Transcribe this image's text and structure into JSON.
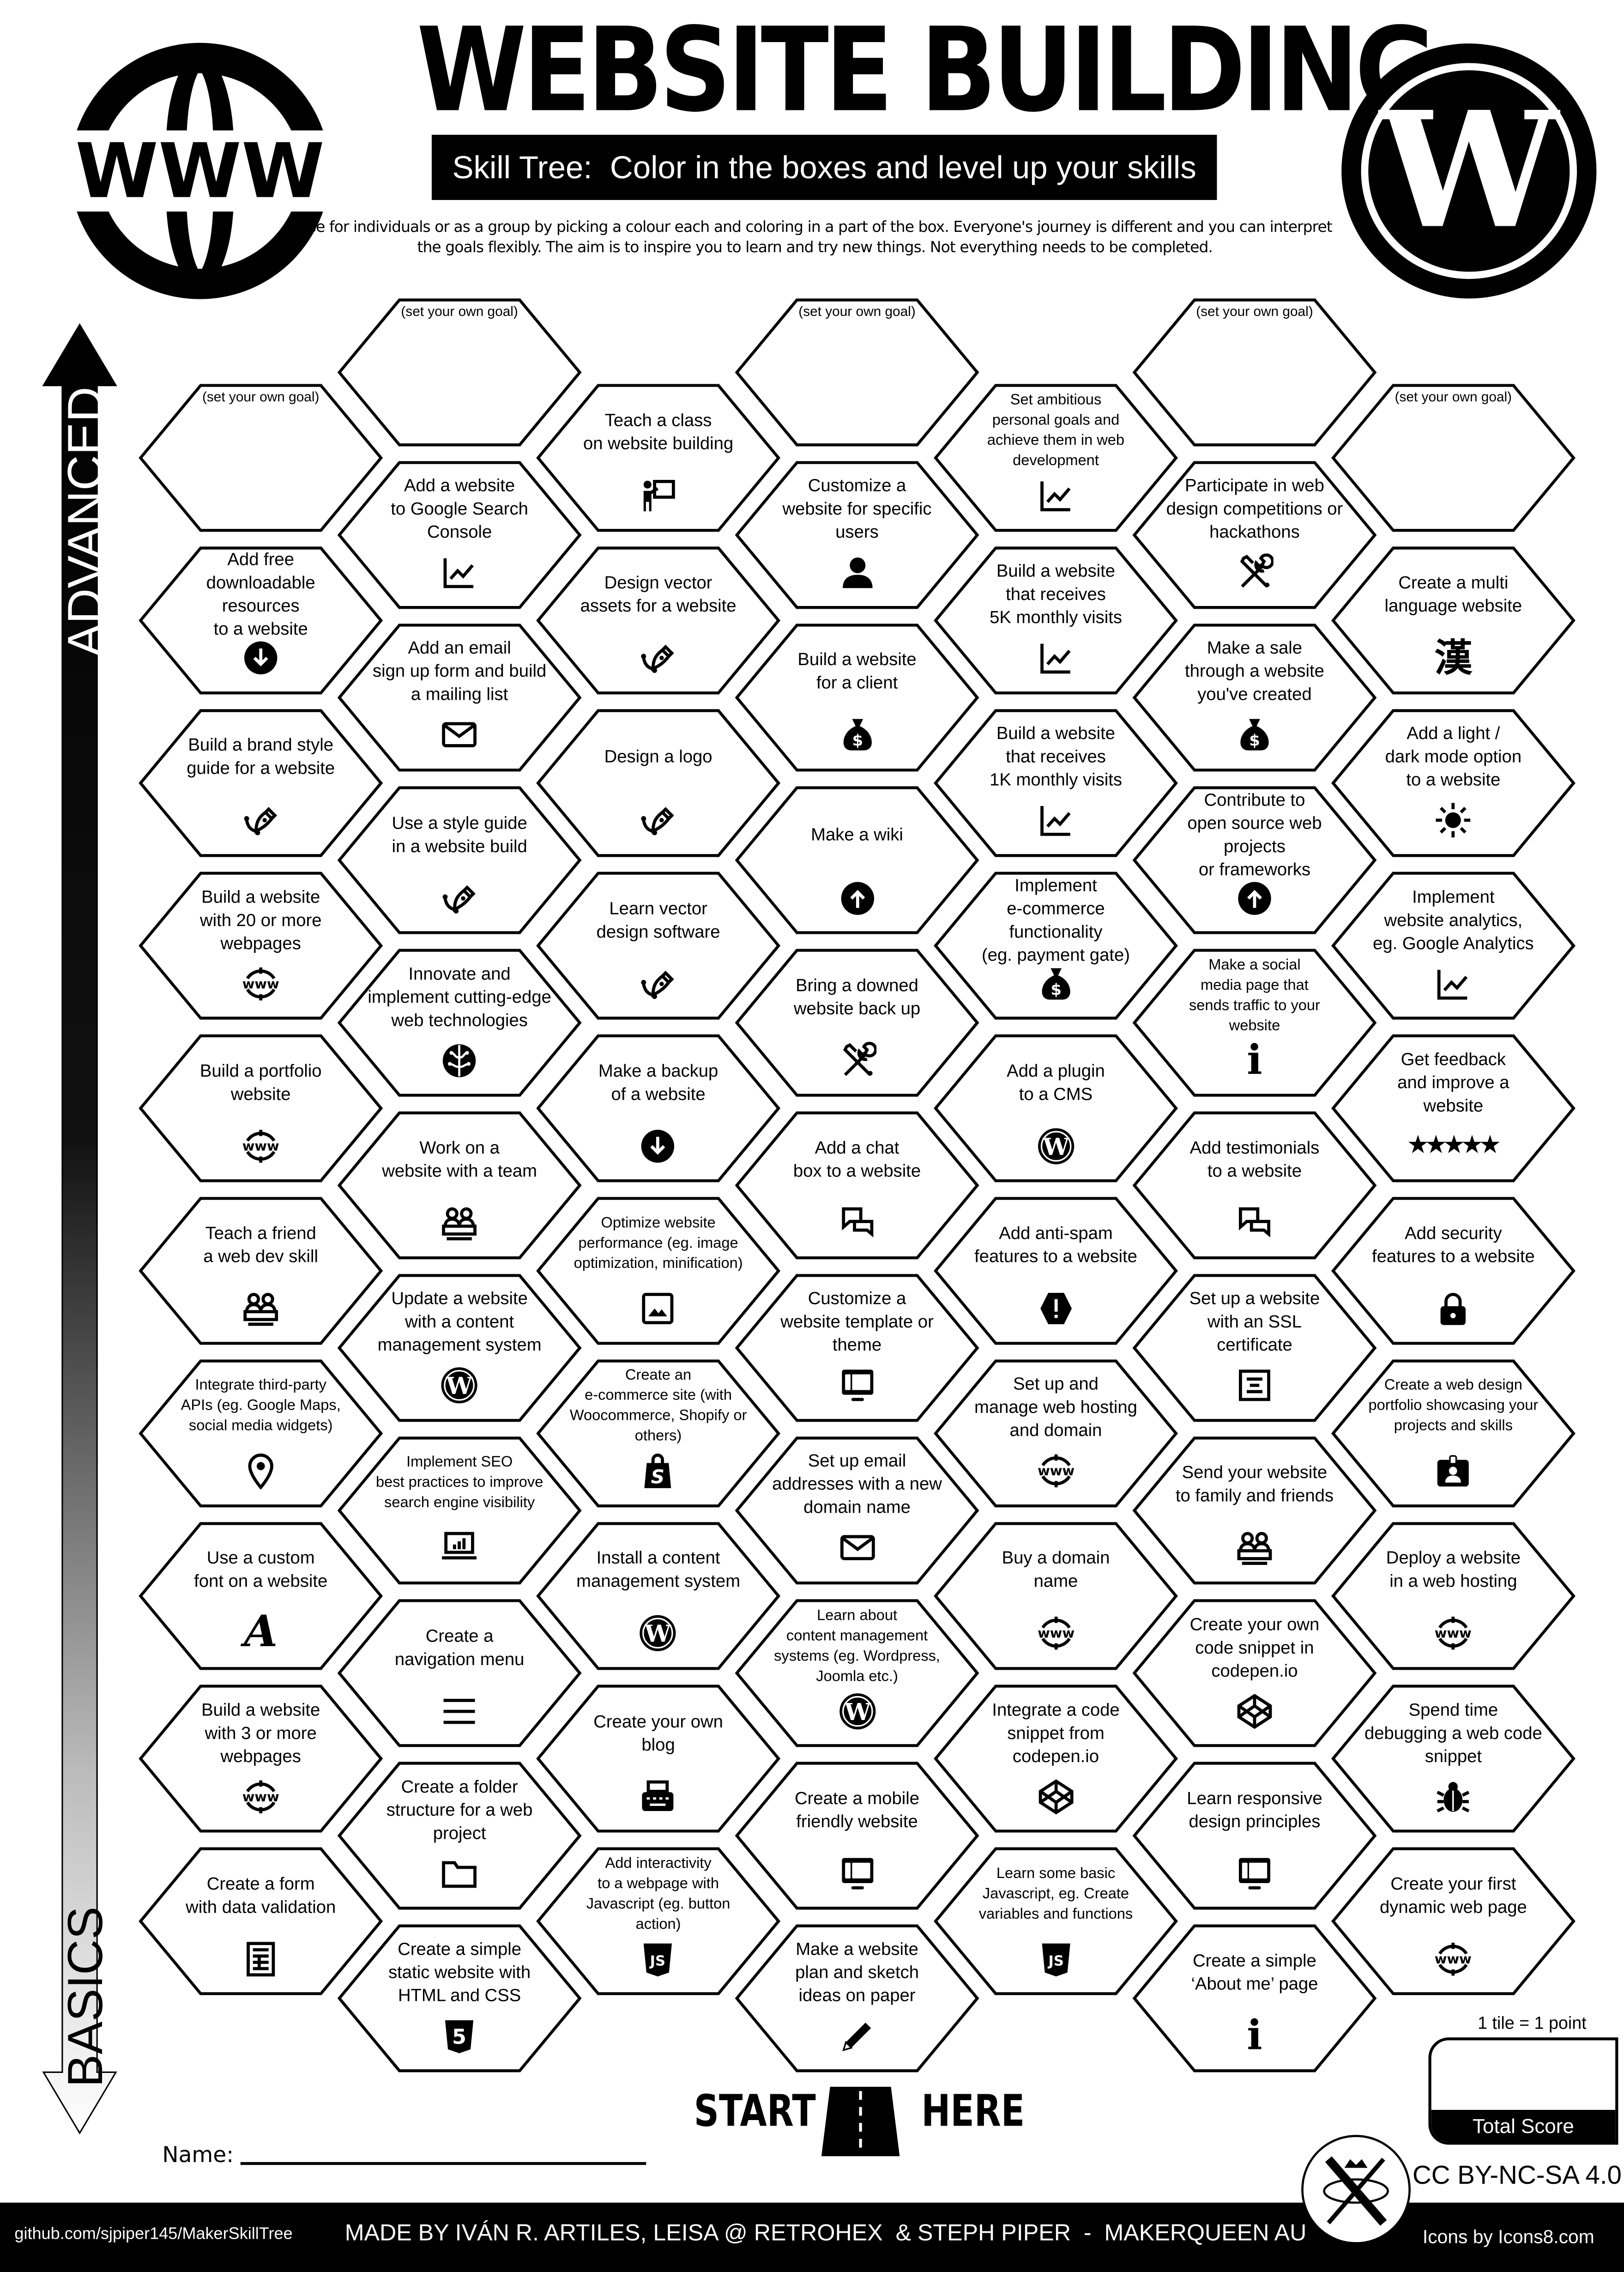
{
  "header": {
    "title": "WEBSITE BUILDING",
    "subtitle": "Skill Tree:  Color in the boxes and level up your skills",
    "description": "Use for individuals or as a group by picking a colour each and coloring in a part of the box.  Everyone's journey is different and you can interpret the goals flexibly.  The aim is to inspire you to learn and try new things. Not everything needs to be completed.",
    "left_logo": "WWW",
    "right_logo": "W"
  },
  "axis": {
    "top": "ADVANCED",
    "bottom": "BASICS"
  },
  "columns": [
    {
      "cells": [
        {
          "text": "(set your own goal)",
          "icon": null
        },
        {
          "text": "Add free\ndownloadable resources\nto a website",
          "icon": "download-circle"
        },
        {
          "text": "Build a brand style\nguide for a website",
          "icon": "pen-tool"
        },
        {
          "text": "Build a website\nwith 20 or more\nwebpages",
          "icon": "www"
        },
        {
          "text": "Build a portfolio\nwebsite",
          "icon": "www"
        },
        {
          "text": "Teach a friend\na web dev skill",
          "icon": "team"
        },
        {
          "text": "Integrate third-party\nAPIs (eg. Google Maps,\nsocial media widgets)",
          "icon": "map-pin"
        },
        {
          "text": "Use a custom\nfont on a website",
          "icon": "font"
        },
        {
          "text": "Build a website\nwith 3 or more\nwebpages",
          "icon": "www"
        },
        {
          "text": "Create a form\nwith data validation",
          "icon": "form"
        }
      ]
    },
    {
      "cells": [
        {
          "text": "(set your own goal)",
          "icon": null
        },
        {
          "text": "Add a website\nto Google Search\nConsole",
          "icon": "chart"
        },
        {
          "text": "Add an email\nsign up form and build\na mailing list",
          "icon": "envelope"
        },
        {
          "text": "Use a style guide\nin a website build",
          "icon": "pen-tool"
        },
        {
          "text": "Innovate and\nimplement cutting-edge\nweb technologies",
          "icon": "brain"
        },
        {
          "text": "Work on a\nwebsite with a team",
          "icon": "team"
        },
        {
          "text": "Update a website\nwith a content\nmanagement system",
          "icon": "wordpress"
        },
        {
          "text": "Implement SEO\nbest practices to improve\nsearch engine visibility",
          "icon": "laptop-chart"
        },
        {
          "text": "Create a\nnavigation menu",
          "icon": "menu"
        },
        {
          "text": "Create a folder\nstructure for a web\nproject",
          "icon": "folder"
        },
        {
          "text": "Create a simple\nstatic website with\nHTML and CSS",
          "icon": "html5"
        }
      ]
    },
    {
      "cells": [
        {
          "text": "Teach a class\non website building",
          "icon": "teacher"
        },
        {
          "text": "Design vector\nassets for a website",
          "icon": "pen-tool"
        },
        {
          "text": "Design a logo",
          "icon": "pen-tool"
        },
        {
          "text": "Learn vector\ndesign software",
          "icon": "pen-tool"
        },
        {
          "text": "Make a backup\nof a website",
          "icon": "download-circle"
        },
        {
          "text": "Optimize website\nperformance (eg. image\noptimization, minification)",
          "icon": "image"
        },
        {
          "text": "Create an\ne-commerce site (with\nWoocommerce, Shopify or\nothers)",
          "icon": "shopify"
        },
        {
          "text": "Install a content\nmanagement system",
          "icon": "wordpress"
        },
        {
          "text": "Create your own\nblog",
          "icon": "typewriter"
        },
        {
          "text": "Add interactivity\nto a webpage with\nJavascript (eg. button\naction)",
          "icon": "javascript"
        }
      ]
    },
    {
      "cells": [
        {
          "text": "(set your own goal)",
          "icon": null
        },
        {
          "text": "Customize a\nwebsite for specific\nusers",
          "icon": "person"
        },
        {
          "text": "Build a website\nfor a client",
          "icon": "money-bag"
        },
        {
          "text": "Make a wiki",
          "icon": "upload-circle"
        },
        {
          "text": "Bring a downed\nwebsite back up",
          "icon": "tools"
        },
        {
          "text": "Add a chat\nbox to a website",
          "icon": "chat"
        },
        {
          "text": "Customize a\nwebsite template or\ntheme",
          "icon": "monitor"
        },
        {
          "text": "Set up email\naddresses with a new\ndomain name",
          "icon": "envelope"
        },
        {
          "text": "Learn about\ncontent management\nsystems (eg. Wordpress,\nJoomla etc.)",
          "icon": "wordpress"
        },
        {
          "text": "Create a mobile\nfriendly website",
          "icon": "monitor"
        },
        {
          "text": "Make a website\nplan and sketch\nideas on paper",
          "icon": "pencil"
        }
      ]
    },
    {
      "cells": [
        {
          "text": "Set ambitious\npersonal goals and\nachieve them in web\ndevelopment",
          "icon": "chart"
        },
        {
          "text": "Build a website\nthat receives\n5K monthly visits",
          "icon": "chart"
        },
        {
          "text": "Build a website\nthat receives\n1K monthly visits",
          "icon": "chart"
        },
        {
          "text": "Implement\ne-commerce functionality\n(eg. payment gate)",
          "icon": "money-bag"
        },
        {
          "text": "Add a plugin\nto a CMS",
          "icon": "wordpress"
        },
        {
          "text": "Add anti-spam\nfeatures to a website",
          "icon": "alert"
        },
        {
          "text": "Set up and\nmanage web hosting\nand domain",
          "icon": "www"
        },
        {
          "text": "Buy a domain\nname",
          "icon": "www"
        },
        {
          "text": "Integrate a code\nsnippet from\ncodepen.io",
          "icon": "codepen"
        },
        {
          "text": "Learn some basic\nJavascript, eg. Create\nvariables and functions",
          "icon": "javascript"
        }
      ]
    },
    {
      "cells": [
        {
          "text": "(set your own goal)",
          "icon": null
        },
        {
          "text": "Participate in web\ndesign competitions or\nhackathons",
          "icon": "tools"
        },
        {
          "text": "Make a sale\nthrough a website\nyou've created",
          "icon": "money-bag"
        },
        {
          "text": "Contribute to\nopen source web projects\nor frameworks",
          "icon": "upload-circle"
        },
        {
          "text": "Make a social\nmedia page that\nsends traffic to your\nwebsite",
          "icon": "info"
        },
        {
          "text": "Add testimonials\nto a website",
          "icon": "chat"
        },
        {
          "text": "Set up a website\nwith an SSL\ncertificate",
          "icon": "certificate"
        },
        {
          "text": "Send your website\nto family and friends",
          "icon": "team"
        },
        {
          "text": "Create your own\ncode snippet in\ncodepen.io",
          "icon": "codepen"
        },
        {
          "text": "Learn responsive\ndesign principles",
          "icon": "monitor"
        },
        {
          "text": "Create a simple\n‘About me’ page",
          "icon": "info"
        }
      ]
    },
    {
      "cells": [
        {
          "text": "(set your own goal)",
          "icon": null
        },
        {
          "text": "Create a multi\nlanguage website",
          "icon": "kanji"
        },
        {
          "text": "Add a light /\ndark mode option\nto a website",
          "icon": "sun"
        },
        {
          "text": "Implement\nwebsite analytics,\neg. Google Analytics",
          "icon": "chart"
        },
        {
          "text": "Get feedback\nand improve a\nwebsite",
          "icon": "stars"
        },
        {
          "text": "Add security\nfeatures to a website",
          "icon": "lock"
        },
        {
          "text": "Create a web design\nportfolio showcasing your\nprojects and skills",
          "icon": "id-card"
        },
        {
          "text": "Deploy a website\nin a web hosting",
          "icon": "www"
        },
        {
          "text": "Spend time\ndebugging a web code\nsnippet",
          "icon": "bug"
        },
        {
          "text": "Create your first\ndynamic web page",
          "icon": "www"
        }
      ]
    }
  ],
  "icon_glyphs": {
    "kanji": "漢",
    "stars": "★★★★★",
    "info": "i",
    "font": "A"
  },
  "start": {
    "left": "START",
    "right": "HERE"
  },
  "name_label": "Name:",
  "score": {
    "rule": "1 tile = 1 point",
    "label": "Total Score"
  },
  "license": "CC BY-NC-SA 4.0",
  "footer": {
    "repo": "github.com/sjpiper145/MakerSkillTree",
    "credits": "MADE BY IVÁN R. ARTILES, LEISA @ RETROHEX  & STEPH PIPER  -  MAKERQUEEN AU",
    "icons": "Icons by Icons8.com"
  }
}
